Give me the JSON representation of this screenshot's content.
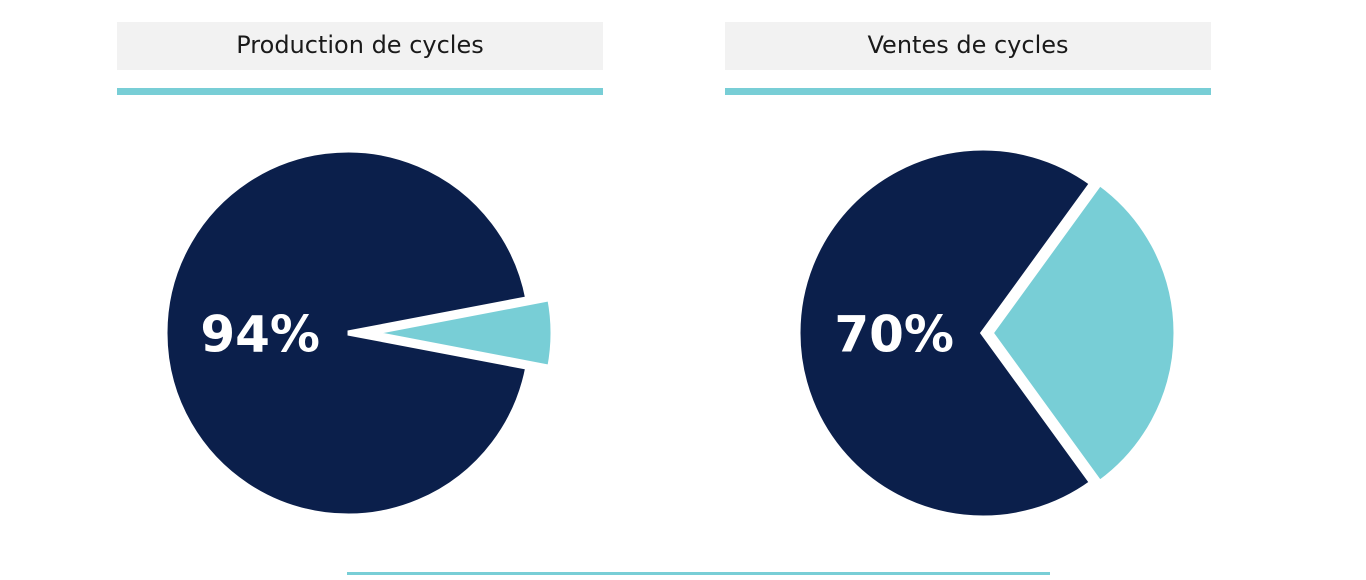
{
  "chart_data": [
    {
      "type": "pie",
      "title": "Production de cycles",
      "values": [
        94,
        6
      ],
      "value_labels": [
        "94%",
        null
      ],
      "colors": [
        "#0b1f4b",
        "#78ced6"
      ]
    },
    {
      "type": "pie",
      "title": "Ventes de cycles",
      "values": [
        70,
        30
      ],
      "value_labels": [
        "70%",
        null
      ],
      "colors": [
        "#0b1f4b",
        "#78ced6"
      ]
    }
  ]
}
